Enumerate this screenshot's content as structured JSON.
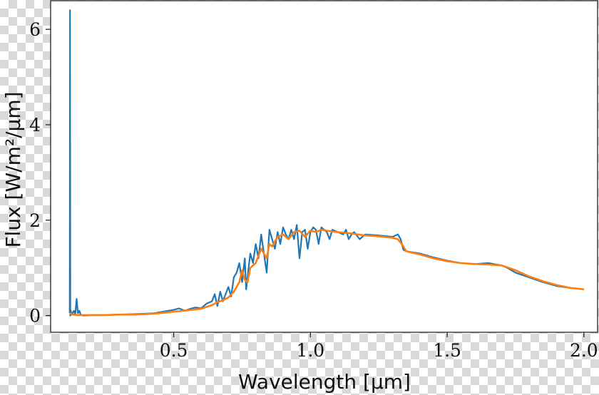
{
  "chart_data": {
    "type": "line",
    "xlabel": "Wavelength [μm]",
    "ylabel": "Flux [W/m²/μm]",
    "xlim": [
      0.05,
      2.05
    ],
    "ylim": [
      -0.35,
      6.6
    ],
    "xticks": [
      0.5,
      1.0,
      1.5,
      2.0
    ],
    "xtick_labels": [
      "0.5",
      "1.0",
      "1.5",
      "2.0"
    ],
    "yticks": [
      0,
      2,
      4,
      6
    ],
    "ytick_labels": [
      "0",
      "2",
      "4",
      "6"
    ],
    "grid": false,
    "colors": {
      "observed": "#1f77b4",
      "model": "#ff7f0e"
    },
    "series": [
      {
        "x": [
          0.12,
          0.121,
          0.122,
          0.124,
          0.126,
          0.13,
          0.135,
          0.14,
          0.145,
          0.15,
          0.155,
          0.16,
          0.17,
          0.2,
          0.25,
          0.3,
          0.35,
          0.4,
          0.43,
          0.46,
          0.5,
          0.52,
          0.54,
          0.56,
          0.58,
          0.6,
          0.62,
          0.64,
          0.65,
          0.66,
          0.67,
          0.68,
          0.69,
          0.7,
          0.71,
          0.72,
          0.73,
          0.74,
          0.75,
          0.76,
          0.765,
          0.77,
          0.78,
          0.79,
          0.8,
          0.81,
          0.82,
          0.83,
          0.84,
          0.85,
          0.86,
          0.87,
          0.88,
          0.89,
          0.9,
          0.91,
          0.92,
          0.93,
          0.94,
          0.95,
          0.96,
          0.97,
          0.98,
          0.99,
          1.0,
          1.01,
          1.02,
          1.03,
          1.04,
          1.05,
          1.06,
          1.07,
          1.08,
          1.1,
          1.12,
          1.13,
          1.14,
          1.15,
          1.16,
          1.18,
          1.2,
          1.25,
          1.3,
          1.32,
          1.33,
          1.34,
          1.35,
          1.4,
          1.45,
          1.5,
          1.55,
          1.6,
          1.65,
          1.7,
          1.72,
          1.75,
          1.8,
          1.85,
          1.9,
          1.95,
          2.0
        ],
        "y": [
          0.05,
          6.4,
          0.0,
          0.1,
          0.02,
          0.05,
          0.1,
          0.02,
          0.35,
          0.05,
          0.1,
          0.02,
          0.0,
          0.01,
          0.01,
          0.02,
          0.03,
          0.04,
          0.05,
          0.08,
          0.12,
          0.15,
          0.1,
          0.14,
          0.17,
          0.15,
          0.25,
          0.3,
          0.45,
          0.2,
          0.5,
          0.3,
          0.45,
          0.6,
          0.4,
          0.8,
          0.9,
          1.1,
          0.7,
          1.2,
          0.55,
          0.8,
          1.3,
          1.1,
          1.5,
          1.2,
          1.7,
          1.3,
          0.9,
          1.8,
          1.6,
          1.4,
          1.75,
          1.5,
          1.85,
          1.7,
          1.6,
          1.8,
          1.6,
          1.9,
          1.2,
          1.75,
          1.8,
          1.4,
          1.75,
          1.85,
          1.8,
          1.5,
          1.85,
          1.8,
          1.75,
          1.6,
          1.8,
          1.75,
          1.7,
          1.8,
          1.6,
          1.7,
          1.75,
          1.6,
          1.7,
          1.68,
          1.65,
          1.7,
          1.6,
          1.38,
          1.35,
          1.3,
          1.22,
          1.15,
          1.1,
          1.08,
          1.1,
          1.05,
          1.0,
          0.9,
          0.8,
          0.7,
          0.62,
          0.58,
          0.55
        ]
      },
      {
        "x": [
          0.12,
          0.13,
          0.15,
          0.2,
          0.25,
          0.3,
          0.35,
          0.4,
          0.45,
          0.5,
          0.55,
          0.6,
          0.62,
          0.64,
          0.66,
          0.68,
          0.7,
          0.72,
          0.74,
          0.75,
          0.76,
          0.77,
          0.78,
          0.8,
          0.82,
          0.84,
          0.85,
          0.86,
          0.88,
          0.9,
          0.92,
          0.94,
          0.96,
          0.98,
          1.0,
          1.02,
          1.04,
          1.06,
          1.08,
          1.1,
          1.15,
          1.2,
          1.25,
          1.3,
          1.32,
          1.34,
          1.35,
          1.4,
          1.45,
          1.5,
          1.55,
          1.6,
          1.65,
          1.7,
          1.75,
          1.8,
          1.85,
          1.9,
          1.95,
          2.0
        ],
        "y": [
          0.05,
          0.02,
          0.01,
          0.01,
          0.01,
          0.02,
          0.02,
          0.03,
          0.05,
          0.08,
          0.11,
          0.14,
          0.18,
          0.22,
          0.28,
          0.32,
          0.38,
          0.5,
          0.7,
          0.95,
          0.75,
          0.7,
          1.0,
          1.1,
          1.4,
          1.2,
          1.5,
          1.45,
          1.65,
          1.7,
          1.6,
          1.75,
          1.78,
          1.65,
          1.78,
          1.75,
          1.8,
          1.78,
          1.76,
          1.75,
          1.72,
          1.68,
          1.66,
          1.63,
          1.6,
          1.45,
          1.35,
          1.28,
          1.2,
          1.14,
          1.1,
          1.08,
          1.07,
          1.05,
          0.95,
          0.82,
          0.72,
          0.64,
          0.58,
          0.55
        ]
      }
    ]
  }
}
